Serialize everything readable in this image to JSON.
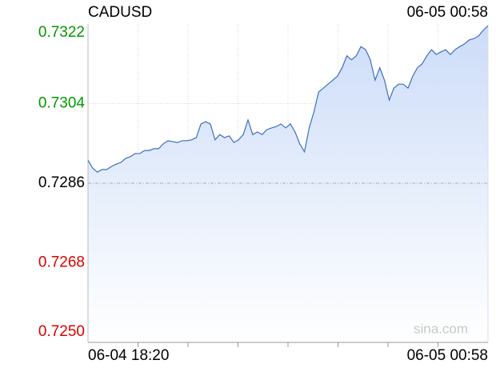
{
  "chart_data": {
    "type": "line",
    "title": "CADUSD",
    "timestamp": "06-05 00:58",
    "watermark": "sina.com",
    "categories": [
      "06-04 18:20",
      null,
      null,
      null,
      null,
      null,
      null,
      null,
      null,
      null,
      null,
      null,
      null,
      null,
      null,
      null,
      null,
      null,
      null,
      null,
      null,
      null,
      null,
      null,
      null,
      null,
      null,
      null,
      null,
      null,
      null,
      null,
      null,
      null,
      null,
      null,
      null,
      null,
      null,
      null,
      null,
      null,
      null,
      null,
      null,
      null,
      null,
      null,
      null,
      null,
      null,
      null,
      null,
      null,
      null,
      null,
      null,
      null,
      null,
      null,
      null,
      null,
      null,
      null,
      null,
      null,
      null,
      null,
      null,
      null,
      null,
      null,
      null,
      null,
      null,
      null,
      null,
      null,
      null,
      null,
      null,
      null,
      null,
      null,
      null,
      "06-05 00:58"
    ],
    "series": [
      {
        "name": "CADUSD",
        "color": "#3c6fc2",
        "values": [
          0.72912,
          0.72894,
          0.72885,
          0.72891,
          0.72891,
          0.72898,
          0.72903,
          0.72907,
          0.72916,
          0.7292,
          0.72927,
          0.72927,
          0.72934,
          0.72934,
          0.72938,
          0.72938,
          0.72949,
          0.72956,
          0.72954,
          0.72952,
          0.72956,
          0.72956,
          0.72958,
          0.72963,
          0.72994,
          0.72999,
          0.72994,
          0.72958,
          0.7297,
          0.72963,
          0.72967,
          0.72952,
          0.72958,
          0.7297,
          0.73003,
          0.7297,
          0.72976,
          0.7297,
          0.72981,
          0.72985,
          0.72988,
          0.72994,
          0.72985,
          0.72994,
          0.72976,
          0.72949,
          0.72931,
          0.72985,
          0.73021,
          0.73066,
          0.73075,
          0.73084,
          0.73093,
          0.73102,
          0.73121,
          0.73148,
          0.73139,
          0.73148,
          0.73169,
          0.73162,
          0.73139,
          0.73093,
          0.73121,
          0.73093,
          0.73048,
          0.73075,
          0.73084,
          0.73084,
          0.73075,
          0.73102,
          0.73121,
          0.7313,
          0.73148,
          0.73162,
          0.73151,
          0.73157,
          0.73162,
          0.73151,
          0.73162,
          0.73169,
          0.73175,
          0.73184,
          0.73187,
          0.73193,
          0.73206,
          0.73216
        ]
      }
    ],
    "ylim": [
      0.725,
      0.7322
    ],
    "yticks": [
      {
        "value": 0.725,
        "label": "0.7250"
      },
      0.7268,
      0.7286,
      0.7304,
      0.7322
    ],
    "reference": 0.7286,
    "up_color": "#009900",
    "down_color": "#dd0000",
    "flat_color": "#000000",
    "grid": true
  }
}
